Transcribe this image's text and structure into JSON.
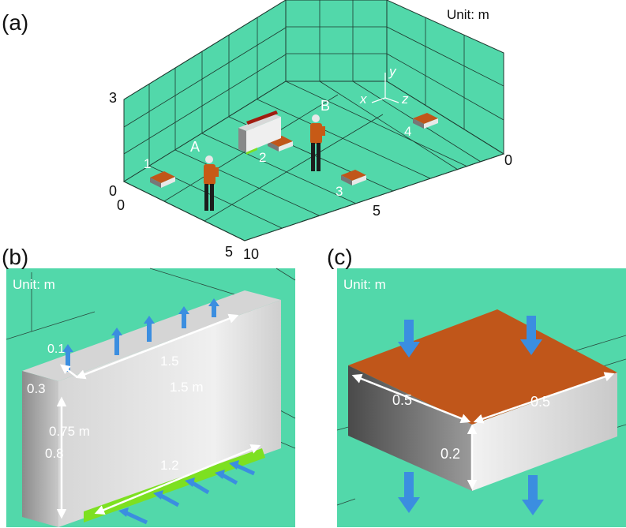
{
  "panel_a": {
    "tag": "(a)",
    "unit": "Unit: m",
    "tick_y0": "0",
    "tick_y3": "3",
    "tick_x0": "0",
    "tick_x5": "5",
    "tick_x10": "10",
    "tick_z0": "0",
    "tick_z5": "5",
    "axis_x": "x",
    "axis_y": "y",
    "axis_z": "z",
    "person_a": "A",
    "person_b": "B",
    "diffuser_1": "1",
    "diffuser_2": "2",
    "diffuser_3": "3",
    "diffuser_4": "4"
  },
  "panel_b": {
    "tag": "(b)",
    "unit": "Unit: m",
    "dim_01": "0.1",
    "dim_15": "1.5",
    "dim_15m": "1.5 m",
    "dim_03": "0.3",
    "dim_075m": "0.75 m",
    "dim_08": "0.8",
    "dim_12": "1.2"
  },
  "panel_c": {
    "tag": "(c)",
    "unit": "Unit: m",
    "dim_05_left": "0.5",
    "dim_05_right": "0.5",
    "dim_02": "0.2"
  },
  "colors": {
    "room_floor": "#52d8aa",
    "grid_line": "#1f3a30",
    "outlet_red": "#a01c10",
    "inlet_green": "#7de021",
    "diffuser_top": "#c0561a",
    "arrow_blue": "#3b8ee0",
    "clothing": "#c75a16"
  }
}
